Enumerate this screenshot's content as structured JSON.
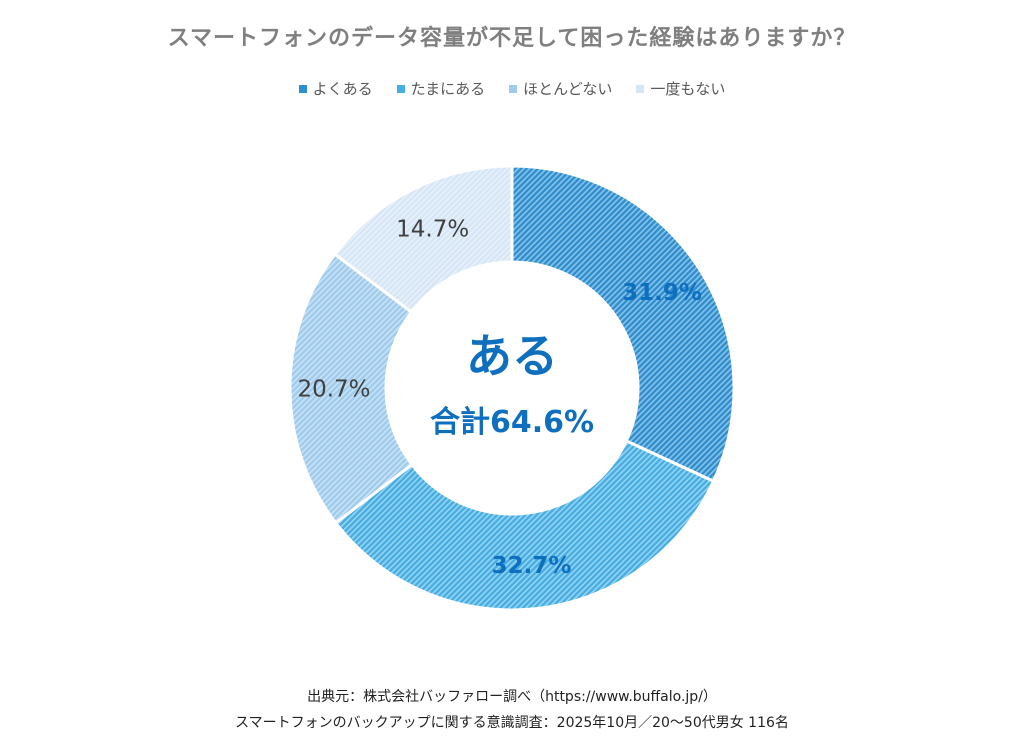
{
  "chart_data": {
    "type": "donut",
    "title": "スマートフォンのデータ容量が不足して困った経験はありますか？",
    "categories": [
      "よくある",
      "たまにある",
      "ほとんどない",
      "一度もない"
    ],
    "values": [
      31.9,
      32.7,
      20.7,
      14.7
    ],
    "value_labels": [
      "31.9%",
      "32.7%",
      "20.7%",
      "14.7%"
    ],
    "colors": [
      "#2e8fd0",
      "#45aee3",
      "#9fcbec",
      "#d6e6f6"
    ],
    "label_colors": [
      "#0f6fbf",
      "#0f6fbf",
      "#404040",
      "#404040"
    ],
    "legend_position": "top",
    "center_label": "ある",
    "center_sub_label": "合計64.6%",
    "center_color": "#0f6fbf"
  },
  "footer": {
    "line1": "出典元：株式会社バッファロー調べ（https://www.buffalo.jp/）",
    "line2": "スマートフォンのバックアップに関する意識調査：2025年10月／20～50代男女 116名"
  }
}
